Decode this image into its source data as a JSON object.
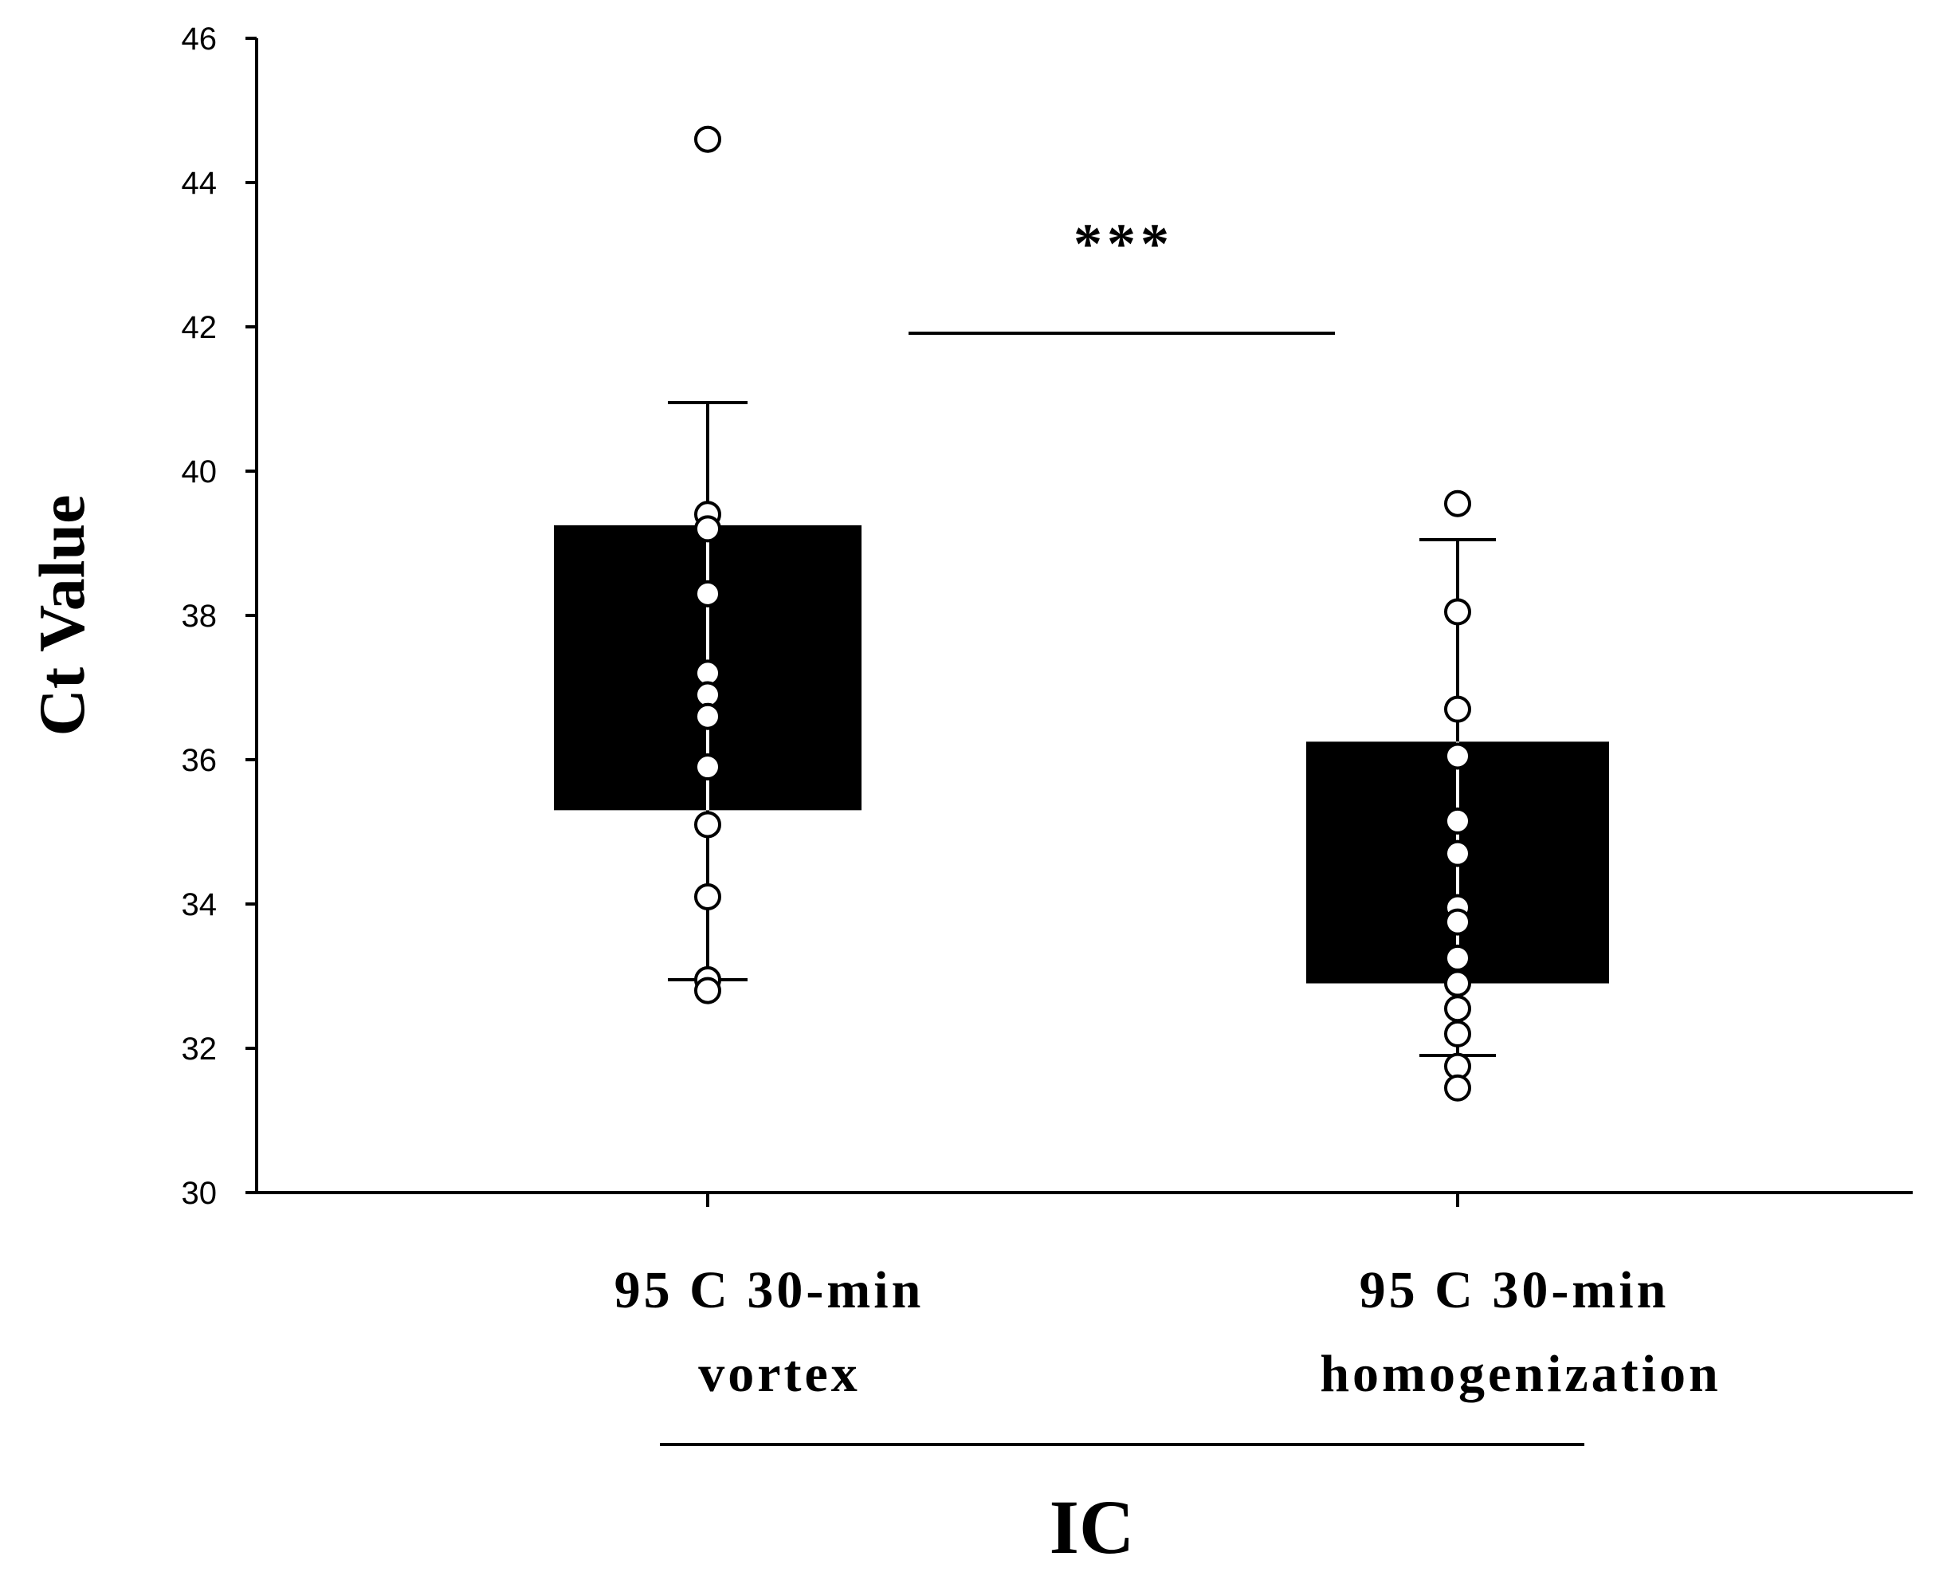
{
  "chart_data": {
    "type": "box",
    "ylabel": "Ct Value",
    "ylim": [
      30,
      46
    ],
    "yticks": [
      "30",
      "32",
      "34",
      "36",
      "38",
      "40",
      "42",
      "44",
      "46"
    ],
    "group_label": "IC",
    "significance": "***",
    "categories": [
      {
        "line1": "95 C 30-min",
        "line2": "vortex"
      },
      {
        "line1": "95 C 30-min",
        "line2": "homogenization"
      }
    ],
    "boxes": [
      {
        "q1": 35.3,
        "q3": 39.25,
        "whisker_low": 32.95,
        "whisker_high": 40.95,
        "points": [
          44.6,
          39.4,
          39.2,
          38.3,
          37.2,
          36.9,
          36.6,
          35.9,
          35.1,
          34.1,
          32.95,
          32.8
        ]
      },
      {
        "q1": 32.9,
        "q3": 36.25,
        "whisker_low": 31.9,
        "whisker_high": 39.05,
        "points": [
          39.55,
          38.05,
          36.7,
          36.05,
          35.15,
          34.7,
          33.95,
          33.75,
          33.25,
          32.9,
          32.55,
          32.2,
          31.75,
          31.45
        ]
      }
    ]
  }
}
